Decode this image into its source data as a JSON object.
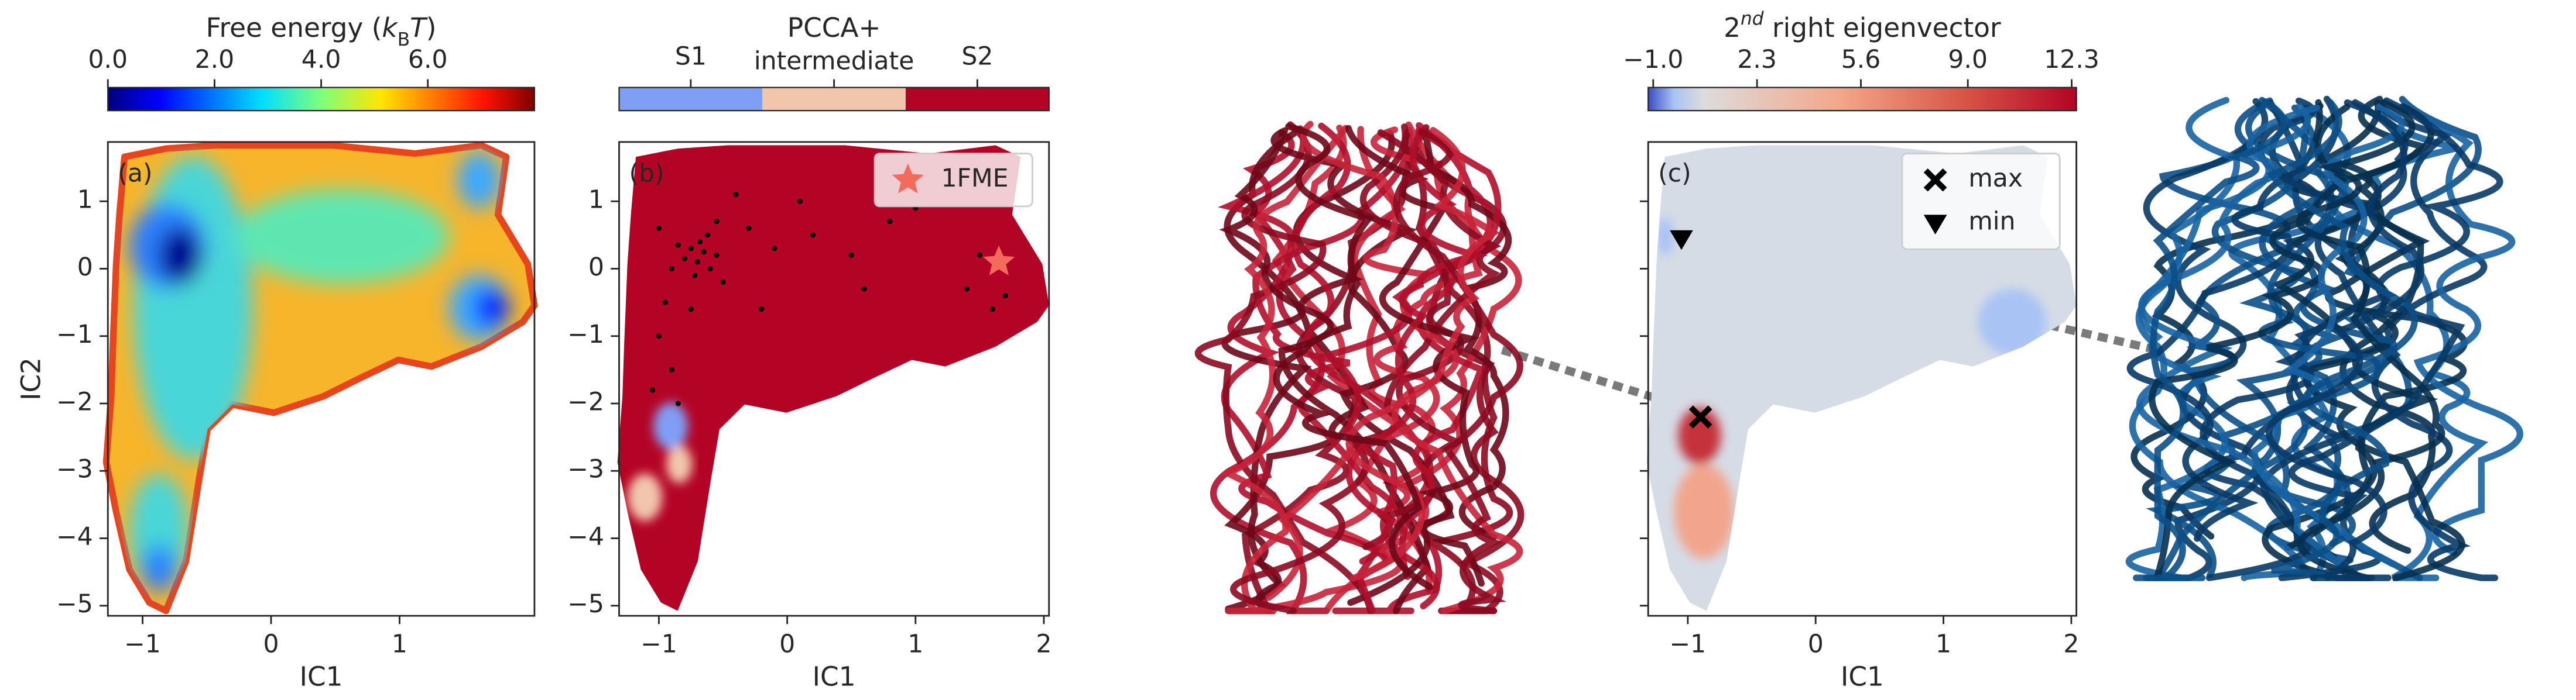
{
  "chart_data": [
    {
      "type": "heatmap",
      "panel_label": "(a)",
      "colorbar": {
        "label_parts": [
          "Free energy (",
          "k",
          "B",
          "T",
          ")"
        ],
        "cmap": "jet",
        "clim": [
          0,
          8.0
        ],
        "ticks": [
          {
            "value": 0,
            "label": "0.0"
          },
          {
            "value": 2,
            "label": "2.0"
          },
          {
            "value": 4,
            "label": "4.0"
          },
          {
            "value": 6,
            "label": "6.0"
          }
        ]
      },
      "xlabel": "IC1",
      "ylabel": "IC2",
      "xlim": [
        -1.27,
        2.05
      ],
      "ylim": [
        -5.15,
        1.88
      ],
      "xticks": [
        {
          "value": -1,
          "label": "−1"
        },
        0,
        1
      ],
      "yticks": [
        {
          "value": -5,
          "label": "−5"
        },
        {
          "value": -4,
          "label": "−4"
        },
        {
          "value": -3,
          "label": "−3"
        },
        {
          "value": -2,
          "label": "−2"
        },
        {
          "value": -1,
          "label": "−1"
        },
        0,
        1
      ]
    },
    {
      "type": "scatter",
      "panel_label": "(b)",
      "colorbar": {
        "label_parts": [
          "PCCA+"
        ],
        "categories": [
          "S1",
          "intermediate",
          "S2"
        ],
        "colors": [
          "#7f9ef5",
          "#f2c6ad",
          "#b40426"
        ]
      },
      "xlabel": "IC1",
      "xlim": [
        -1.31,
        2.04
      ],
      "ylim": [
        -5.15,
        1.88
      ],
      "xticks": [
        {
          "value": -1,
          "label": "−1"
        },
        0,
        1,
        2
      ],
      "yticks": [
        {
          "value": -5,
          "label": "−5"
        },
        {
          "value": -4,
          "label": "−4"
        },
        {
          "value": -3,
          "label": "−3"
        },
        {
          "value": -2,
          "label": "−2"
        },
        {
          "value": -1,
          "label": "−1"
        },
        0,
        1
      ],
      "points": {
        "color": "#000000",
        "x": [
          -0.75,
          -0.7,
          -0.65,
          -0.6,
          -0.8,
          -0.68,
          -0.72,
          -0.55,
          -0.85,
          -0.62,
          -0.9,
          -0.5,
          -0.95,
          -1.0,
          -0.9,
          -0.85,
          -1.05,
          -0.3,
          -0.1,
          0.2,
          0.5,
          0.8,
          1.0,
          0.1,
          -0.4,
          0.6,
          1.4,
          1.6,
          1.7,
          1.5,
          -0.2,
          -1.0,
          -0.75,
          -0.55
        ],
        "y": [
          0.3,
          0.1,
          0.25,
          0.0,
          0.15,
          0.4,
          -0.1,
          0.2,
          0.35,
          0.5,
          0.0,
          -0.2,
          -0.5,
          -1.0,
          -1.5,
          -2.0,
          -1.8,
          0.6,
          0.3,
          0.5,
          0.2,
          0.7,
          0.9,
          1.0,
          1.1,
          -0.3,
          -0.3,
          -0.6,
          -0.4,
          0.2,
          -0.6,
          0.6,
          -0.6,
          0.7
        ]
      },
      "legend": "upper right",
      "series": [
        {
          "name": "1FME",
          "color": "#f26b5b",
          "marker": "star",
          "x": [
            1.65
          ],
          "y": [
            0.1
          ]
        }
      ]
    },
    {
      "type": "heatmap",
      "panel_label": "(c)",
      "colorbar": {
        "label_parts": [
          "2",
          "nd",
          " right eigenvector"
        ],
        "cmap": "coolwarm",
        "clim": [
          -1.16,
          12.45
        ],
        "ticks": [
          {
            "value": -1.0,
            "label": "−1.0"
          },
          {
            "value": 2.3,
            "label": "2.3"
          },
          {
            "value": 5.6,
            "label": "5.6"
          },
          {
            "value": 9.0,
            "label": "9.0"
          },
          {
            "value": 12.3,
            "label": "12.3"
          }
        ]
      },
      "xlabel": "IC1",
      "xlim": [
        -1.31,
        2.04
      ],
      "ylim": [
        -5.15,
        1.88
      ],
      "xticks": [
        {
          "value": -1,
          "label": "−1"
        },
        0,
        1,
        2
      ],
      "yticks": [
        -5,
        -4,
        -3,
        -2,
        -1,
        0,
        1
      ],
      "ytick_labels": false,
      "legend": "upper right",
      "series": [
        {
          "name": "max",
          "color": "#000000",
          "marker": "x",
          "x": [
            -0.9
          ],
          "y": [
            -2.2
          ]
        },
        {
          "name": "min",
          "color": "#000000",
          "marker": "triangle",
          "x": [
            -1.05
          ],
          "y": [
            0.45
          ]
        }
      ]
    }
  ]
}
